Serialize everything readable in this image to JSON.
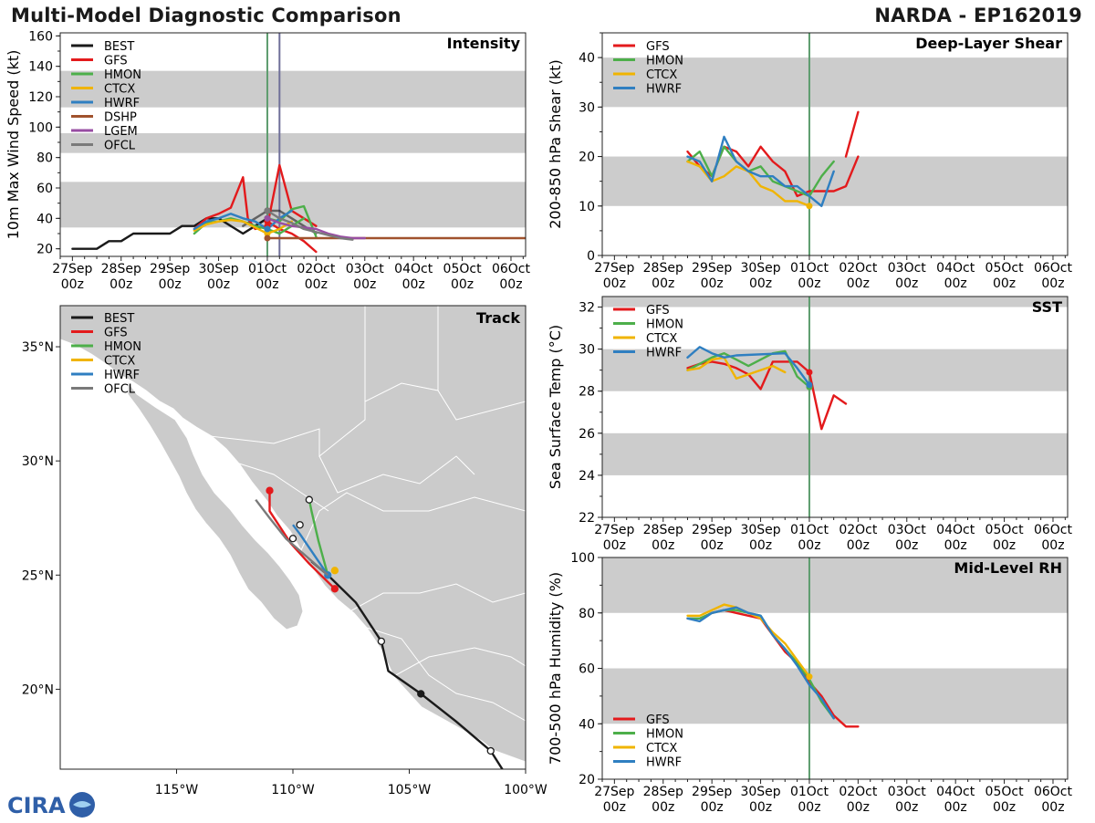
{
  "header": {
    "title": "Multi-Model Diagnostic Comparison",
    "storm": "NARDA - EP162019"
  },
  "logo": {
    "text": "CIRA"
  },
  "colors": {
    "BEST": "#1a1a1a",
    "GFS": "#e31a1c",
    "HMON": "#4daf4a",
    "CTCX": "#f0b400",
    "HWRF": "#2f7fc1",
    "DSHP": "#a0522d",
    "LGEM": "#984ea3",
    "OFCL": "#7a7a7a",
    "band": "#cccccc",
    "land": "#cbcbcb",
    "ocean": "#ffffff",
    "vline1": "#5d9c6e",
    "vline2": "#6f6f99"
  },
  "time_axis": {
    "labels_top": [
      "27Sep",
      "28Sep",
      "29Sep",
      "30Sep",
      "01Oct",
      "02Oct",
      "03Oct",
      "04Oct",
      "05Oct",
      "06Oct"
    ],
    "labels_bottom": [
      "00z",
      "00z",
      "00z",
      "00z",
      "00z",
      "00z",
      "00z",
      "00z",
      "00z",
      "00z"
    ]
  },
  "chart_data": [
    {
      "id": "intensity",
      "type": "line",
      "title": "Intensity",
      "ylabel": "10m Max Wind Speed (kt)",
      "ylim": [
        15,
        162
      ],
      "xlim": [
        -0.25,
        9.3
      ],
      "yticks": [
        20,
        40,
        60,
        80,
        100,
        120,
        140,
        160
      ],
      "bands": [
        [
          34,
          64
        ],
        [
          83,
          96
        ],
        [
          113,
          137
        ]
      ],
      "vlines": [
        4.0,
        4.25
      ],
      "legend": [
        "BEST",
        "GFS",
        "HMON",
        "CTCX",
        "HWRF",
        "DSHP",
        "LGEM",
        "OFCL"
      ],
      "series": [
        {
          "name": "BEST",
          "x": [
            0,
            0.5,
            0.75,
            1.0,
            1.25,
            1.5,
            1.75,
            2.0,
            2.25,
            2.5,
            2.75,
            3.0,
            3.25,
            3.5,
            3.75,
            4.0
          ],
          "y": [
            20,
            20,
            25,
            25,
            30,
            30,
            30,
            30,
            35,
            35,
            40,
            40,
            35,
            30,
            35,
            40
          ]
        },
        {
          "name": "BEST",
          "x": [
            3.5,
            3.75,
            4.0,
            4.25,
            4.5,
            4.75,
            5.0
          ],
          "y": [
            35,
            40,
            45,
            45,
            40,
            35,
            30
          ],
          "style": "ghost"
        },
        {
          "name": "GFS",
          "x": [
            2.5,
            2.75,
            3.0,
            3.25,
            3.5,
            3.6,
            3.75,
            4.0,
            4.25,
            4.5,
            4.75,
            5.0
          ],
          "y": [
            33,
            40,
            43,
            47,
            67,
            40,
            33,
            35,
            75,
            45,
            40,
            35
          ]
        },
        {
          "name": "GFS",
          "x": [
            4.0,
            4.25,
            4.5,
            4.75,
            5.0
          ],
          "y": [
            38,
            33,
            30,
            25,
            18
          ]
        },
        {
          "name": "HMON",
          "x": [
            2.5,
            2.75,
            3.0,
            3.25,
            3.5,
            3.75,
            4.0,
            4.25,
            4.5,
            4.75
          ],
          "y": [
            30,
            37,
            38,
            40,
            38,
            35,
            33,
            30,
            35,
            40
          ]
        },
        {
          "name": "HMON",
          "x": [
            4.0,
            4.25,
            4.5,
            4.75,
            5.0
          ],
          "y": [
            40,
            38,
            46,
            48,
            28
          ]
        },
        {
          "name": "CTCX",
          "x": [
            2.5,
            2.75,
            3.0,
            3.25,
            3.5,
            3.75,
            4.0,
            4.25,
            4.5
          ],
          "y": [
            32,
            36,
            38,
            39,
            38,
            34,
            30,
            33,
            38
          ]
        },
        {
          "name": "HWRF",
          "x": [
            2.5,
            2.75,
            3.0,
            3.25,
            3.5,
            3.75,
            4.0,
            4.25,
            4.5
          ],
          "y": [
            33,
            38,
            40,
            43,
            40,
            38,
            33,
            40,
            45
          ]
        },
        {
          "name": "DSHP",
          "x": [
            4.0,
            9.3
          ],
          "y": [
            27,
            27
          ]
        },
        {
          "name": "LGEM",
          "x": [
            4.0,
            4.25,
            4.5,
            4.75,
            5.0,
            5.25,
            5.5,
            5.75,
            6.0
          ],
          "y": [
            40,
            37,
            35,
            34,
            33,
            30,
            28,
            27,
            27
          ]
        },
        {
          "name": "OFCL",
          "x": [
            4.0,
            4.25,
            4.5,
            4.75,
            5.0,
            5.25,
            5.5,
            5.75
          ],
          "y": [
            45,
            40,
            37,
            33,
            31,
            29,
            27,
            26
          ]
        }
      ]
    },
    {
      "id": "shear",
      "type": "line",
      "title": "Deep-Layer Shear",
      "ylabel": "200-850 hPa Shear (kt)",
      "ylim": [
        0,
        45
      ],
      "xlim": [
        -0.25,
        9.3
      ],
      "yticks": [
        0,
        10,
        20,
        30,
        40
      ],
      "bands": [
        [
          10,
          20
        ],
        [
          30,
          40
        ]
      ],
      "vlines": [
        4.0
      ],
      "legend": [
        "GFS",
        "HMON",
        "CTCX",
        "HWRF"
      ],
      "series": [
        {
          "name": "GFS",
          "x": [
            1.5,
            1.75,
            2.0,
            2.25,
            2.5,
            2.75,
            3.0,
            3.25,
            3.5,
            3.75,
            4.0,
            4.25,
            4.5,
            4.75,
            5.0
          ],
          "y": [
            21,
            18,
            16,
            22,
            21,
            18,
            22,
            19,
            17,
            12,
            13,
            13,
            13,
            14,
            20
          ]
        },
        {
          "name": "GFS",
          "x": [
            4.75,
            5.0
          ],
          "y": [
            20,
            29
          ]
        },
        {
          "name": "HMON",
          "x": [
            1.5,
            1.75,
            2.0,
            2.25,
            2.5,
            2.75,
            3.0,
            3.25,
            3.5,
            3.75,
            4.0,
            4.25,
            4.5
          ],
          "y": [
            19,
            21,
            16,
            22,
            19,
            17,
            18,
            15,
            14,
            13,
            12,
            16,
            19
          ]
        },
        {
          "name": "CTCX",
          "x": [
            1.5,
            1.75,
            2.0,
            2.25,
            2.5,
            2.75,
            3.0,
            3.25,
            3.5,
            3.75,
            4.0
          ],
          "y": [
            19,
            18,
            15,
            16,
            18,
            17,
            14,
            13,
            11,
            11,
            10
          ]
        },
        {
          "name": "HWRF",
          "x": [
            1.5,
            1.75,
            2.0,
            2.25,
            2.5,
            2.75,
            3.0,
            3.25,
            3.5,
            3.75,
            4.0,
            4.25,
            4.5
          ],
          "y": [
            20,
            19,
            15,
            24,
            19,
            17,
            16,
            16,
            14,
            14,
            12,
            10,
            17
          ]
        }
      ]
    },
    {
      "id": "sst",
      "type": "line",
      "title": "SST",
      "ylabel": "Sea Surface Temp (°C)",
      "ylim": [
        22,
        32.5
      ],
      "xlim": [
        -0.25,
        9.3
      ],
      "yticks": [
        22,
        24,
        26,
        28,
        30,
        32
      ],
      "bands": [
        [
          24,
          26
        ],
        [
          28,
          30
        ],
        [
          32,
          33
        ]
      ],
      "vlines": [
        4.0
      ],
      "legend": [
        "GFS",
        "HMON",
        "CTCX",
        "HWRF"
      ],
      "series": [
        {
          "name": "GFS",
          "x": [
            1.5,
            1.75,
            2.0,
            2.25,
            2.5,
            2.75,
            3.0,
            3.25,
            3.5,
            3.75,
            4.0
          ],
          "y": [
            29.1,
            29.3,
            29.4,
            29.3,
            29.1,
            28.8,
            28.1,
            29.4,
            29.4,
            29.4,
            28.9
          ]
        },
        {
          "name": "GFS",
          "x": [
            4.0,
            4.25,
            4.5,
            4.75
          ],
          "y": [
            28.9,
            26.2,
            27.8,
            27.4
          ]
        },
        {
          "name": "HMON",
          "x": [
            1.5,
            1.75,
            2.0,
            2.25,
            2.5,
            2.75,
            3.25,
            3.5,
            3.75,
            4.0
          ],
          "y": [
            29.0,
            29.3,
            29.6,
            29.8,
            29.5,
            29.2,
            29.8,
            29.9,
            28.7,
            28.2
          ]
        },
        {
          "name": "CTCX",
          "x": [
            1.5,
            1.75,
            2.0,
            2.25,
            2.5,
            3.25,
            3.5
          ],
          "y": [
            29.0,
            29.1,
            29.5,
            29.6,
            28.6,
            29.2,
            28.9
          ]
        },
        {
          "name": "HWRF",
          "x": [
            1.5,
            1.75,
            2.0,
            2.25,
            2.5,
            3.5,
            3.75,
            4.0
          ],
          "y": [
            29.6,
            30.1,
            29.8,
            29.6,
            29.7,
            29.8,
            29.1,
            28.3
          ]
        }
      ]
    },
    {
      "id": "rh",
      "type": "line",
      "title": "Mid-Level RH",
      "ylabel": "700-500 hPa Humidity (%)",
      "ylim": [
        20,
        100
      ],
      "xlim": [
        -0.25,
        9.3
      ],
      "yticks": [
        20,
        40,
        60,
        80,
        100
      ],
      "bands": [
        [
          40,
          60
        ],
        [
          80,
          100
        ]
      ],
      "vlines": [
        4.0
      ],
      "legend": [
        "GFS",
        "HMON",
        "CTCX",
        "HWRF"
      ],
      "legend_loc": "bottom-left",
      "series": [
        {
          "name": "GFS",
          "x": [
            1.5,
            1.75,
            2.0,
            2.25,
            2.5,
            2.75,
            3.0,
            3.25,
            3.5,
            3.75,
            4.0,
            4.25,
            4.5,
            4.75,
            5.0
          ],
          "y": [
            78,
            78,
            80,
            81,
            80,
            79,
            78,
            72,
            66,
            62,
            55,
            50,
            43,
            39,
            39
          ]
        },
        {
          "name": "HMON",
          "x": [
            1.5,
            1.75,
            2.0,
            2.25,
            2.5,
            2.75,
            3.0,
            3.25,
            3.5,
            3.75,
            4.0,
            4.25,
            4.5
          ],
          "y": [
            78,
            78,
            80,
            81,
            81,
            80,
            79,
            72,
            67,
            62,
            56,
            48,
            42
          ]
        },
        {
          "name": "CTCX",
          "x": [
            1.5,
            1.75,
            2.0,
            2.25,
            2.5,
            2.75,
            3.0,
            3.25,
            3.5,
            3.75,
            4.0
          ],
          "y": [
            79,
            79,
            81,
            83,
            82,
            80,
            78,
            73,
            69,
            63,
            57
          ]
        },
        {
          "name": "HWRF",
          "x": [
            1.5,
            1.75,
            2.0,
            2.25,
            2.5,
            2.75,
            3.0,
            3.25,
            3.5,
            3.75,
            4.0,
            4.25,
            4.5
          ],
          "y": [
            78,
            77,
            80,
            81,
            82,
            80,
            79,
            72,
            67,
            61,
            54,
            49,
            42
          ]
        }
      ]
    },
    {
      "id": "track",
      "type": "map-track",
      "title": "Track",
      "lon_range": [
        -120,
        -100
      ],
      "lat_range": [
        16.5,
        36.8
      ],
      "lon_ticks": [
        -115,
        -110,
        -105,
        -100
      ],
      "lon_labels": [
        "115°W",
        "110°W",
        "105°W",
        "100°W"
      ],
      "lat_ticks": [
        20,
        25,
        30,
        35
      ],
      "lat_labels": [
        "20°N",
        "25°N",
        "30°N",
        "35°N"
      ],
      "legend": [
        "BEST",
        "GFS",
        "HMON",
        "CTCX",
        "HWRF",
        "OFCL"
      ],
      "series": [
        {
          "name": "BEST",
          "lon": [
            -101.0,
            -101.5,
            -103.0,
            -104.5,
            -105.9,
            -106.2,
            -107.3,
            -108.5,
            -109.2
          ],
          "lat": [
            16.5,
            17.3,
            18.6,
            19.8,
            20.8,
            22.1,
            23.8,
            25.0,
            25.6
          ],
          "markers": [
            [
              -101.5,
              17.3,
              "open"
            ],
            [
              -104.5,
              19.8,
              "filled"
            ],
            [
              -106.2,
              22.1,
              "open"
            ]
          ]
        },
        {
          "name": "GFS",
          "lon": [
            -108.2,
            -108.6,
            -109.3,
            -110.1,
            -111.0,
            -111.0
          ],
          "lat": [
            24.4,
            24.8,
            25.5,
            26.4,
            27.8,
            28.7
          ],
          "markers": [
            [
              -108.2,
              24.4,
              "filled"
            ],
            [
              -111.0,
              28.7,
              "filled"
            ]
          ]
        },
        {
          "name": "HMON",
          "lon": [
            -108.5,
            -108.9,
            -109.2,
            -109.3
          ],
          "lat": [
            25.0,
            26.5,
            27.8,
            28.3
          ],
          "markers": [
            [
              -109.3,
              28.3,
              "open"
            ]
          ]
        },
        {
          "name": "CTCX",
          "lon": [
            -108.2
          ],
          "lat": [
            25.2
          ],
          "markers": [
            [
              -108.2,
              25.2,
              "filled"
            ]
          ]
        },
        {
          "name": "HWRF",
          "lon": [
            -108.5,
            -109.1,
            -109.7,
            -110.0
          ],
          "lat": [
            25.0,
            25.9,
            26.8,
            27.2
          ],
          "markers": [
            [
              -108.5,
              25.0,
              "filled"
            ],
            [
              -109.7,
              27.2,
              "open"
            ]
          ]
        },
        {
          "name": "OFCL",
          "lon": [
            -108.5,
            -109.4,
            -110.3,
            -111.0,
            -111.6
          ],
          "lat": [
            25.0,
            25.8,
            26.6,
            27.5,
            28.3
          ],
          "markers": [
            [
              -110.0,
              26.6,
              "open"
            ]
          ]
        }
      ]
    }
  ]
}
